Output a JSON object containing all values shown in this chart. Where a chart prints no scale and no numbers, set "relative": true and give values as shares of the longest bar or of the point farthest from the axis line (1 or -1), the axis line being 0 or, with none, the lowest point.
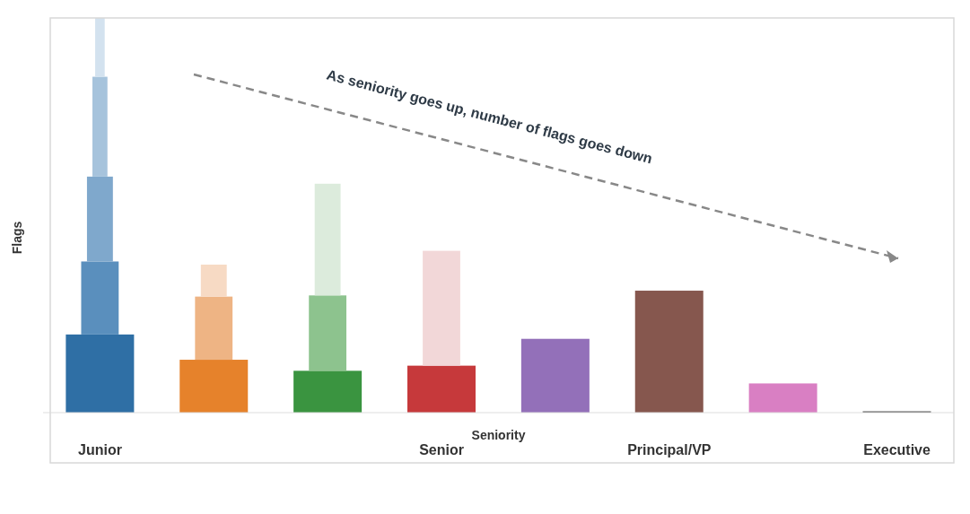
{
  "chart_data": {
    "type": "bar",
    "stacked": true,
    "relative": true,
    "xlabel": "Seniority",
    "ylabel": "Flags",
    "categories": [
      "Junior",
      null,
      null,
      "Senior",
      null,
      "Principal/VP",
      null,
      "Executive"
    ],
    "legend": false,
    "grid": false,
    "series": [
      {
        "values": [
          0.198,
          0.134,
          0.106,
          0.119,
          0.187,
          0.309,
          0.074,
          0
        ],
        "colors": [
          "#2f6fa5",
          "#e6822b",
          "#3a9440",
          "#c6393b",
          "#9370b9",
          "#86574e",
          "#d97fc3",
          "#555555"
        ]
      },
      {
        "values": [
          0.185,
          0.16,
          0.191,
          0.291,
          null,
          null,
          null,
          null
        ],
        "colors": [
          "#5a8fbd",
          "#eeb484",
          "#8dc38e",
          "#f2d7d8",
          null,
          null,
          null,
          null
        ]
      },
      {
        "values": [
          0.215,
          0.081,
          0.283,
          null,
          null,
          null,
          null,
          null
        ],
        "colors": [
          "#7fa8cc",
          "#f7dac4",
          "#dcebdc",
          null,
          null,
          null,
          null,
          null
        ]
      },
      {
        "values": [
          0.253,
          null,
          null,
          null,
          null,
          null,
          null,
          null
        ],
        "colors": [
          "#a6c3dc",
          null,
          null,
          null,
          null,
          null,
          null,
          null
        ]
      },
      {
        "values": [
          0.149,
          null,
          null,
          null,
          null,
          null,
          null,
          null
        ],
        "colors": [
          "#d3e2ef",
          null,
          null,
          null,
          null,
          null,
          null,
          null
        ]
      }
    ],
    "annotations": [
      "As seniority goes up, number of flags goes down"
    ]
  }
}
